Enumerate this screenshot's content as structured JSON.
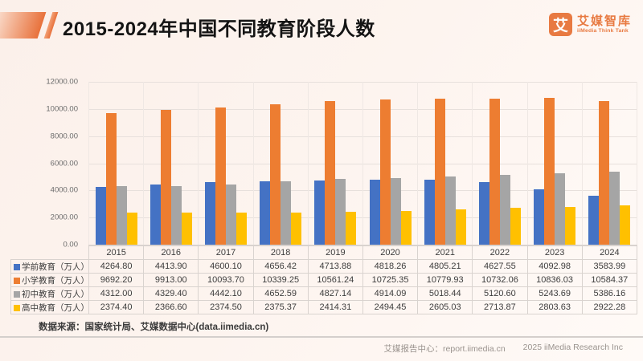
{
  "header": {
    "title": "2015-2024年中国不同教育阶段人数",
    "logo": {
      "icon_char": "艾",
      "name_cn": "艾媒智库",
      "name_en": "iiMedia Think Tank"
    }
  },
  "chart_data": {
    "type": "bar",
    "title": "2015-2024年中国不同教育阶段人数",
    "categories": [
      "2015",
      "2016",
      "2017",
      "2018",
      "2019",
      "2020",
      "2021",
      "2022",
      "2023",
      "2024"
    ],
    "series": [
      {
        "name": "学前教育（万人）",
        "color": "#4472C4",
        "values": [
          4264.8,
          4413.9,
          4600.1,
          4656.42,
          4713.88,
          4818.26,
          4805.21,
          4627.55,
          4092.98,
          3583.99
        ]
      },
      {
        "name": "小学教育（万人）",
        "color": "#ED7D31",
        "values": [
          9692.2,
          9913.0,
          10093.7,
          10339.25,
          10561.24,
          10725.35,
          10779.93,
          10732.06,
          10836.03,
          10584.37
        ]
      },
      {
        "name": "初中教育（万人）",
        "color": "#A5A5A5",
        "values": [
          4312.0,
          4329.4,
          4442.1,
          4652.59,
          4827.14,
          4914.09,
          5018.44,
          5120.6,
          5243.69,
          5386.16
        ]
      },
      {
        "name": "高中教育（万人）",
        "color": "#FFC000",
        "values": [
          2374.4,
          2366.6,
          2374.5,
          2375.37,
          2414.31,
          2494.45,
          2605.03,
          2713.87,
          2803.63,
          2922.28
        ]
      }
    ],
    "xlabel": "",
    "ylabel": "",
    "ylim": [
      0,
      12000
    ],
    "ytick_step": 2000,
    "ytick_labels": [
      "0.00",
      "2000.00",
      "4000.00",
      "6000.00",
      "8000.00",
      "10000.00",
      "12000.00"
    ],
    "grid": true,
    "legend_position": "table-left-column"
  },
  "source_note": "数据来源：国家统计局、艾媒数据中心(data.iimedia.cn)",
  "footer": {
    "left_text": "艾媒报告中心：report.iimedia.cn",
    "right_text": "2025 iiMedia Research Inc"
  },
  "colors": {
    "brand_orange": "#E87A42",
    "background_pink": "#FBF0EA",
    "gridline": "#E7E0DC",
    "table_border": "#D9D3CF"
  }
}
